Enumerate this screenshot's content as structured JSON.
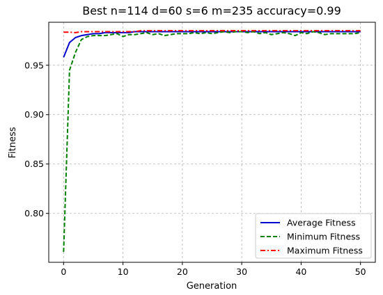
{
  "chart_data": {
    "type": "line",
    "title": "Best n=114 d=60 s=6 m=235 accuracy=0.99",
    "xlabel": "Generation",
    "ylabel": "Fitness",
    "xlim": [
      -2.5,
      52.5
    ],
    "ylim": [
      0.7505,
      0.9935
    ],
    "xticks": [
      0,
      10,
      20,
      30,
      40,
      50
    ],
    "yticks": [
      0.8,
      0.85,
      0.9,
      0.95
    ],
    "xtick_labels": [
      "0",
      "10",
      "20",
      "30",
      "40",
      "50"
    ],
    "ytick_labels": [
      "0.80",
      "0.85",
      "0.90",
      "0.95"
    ],
    "grid": true,
    "legend_position": "lower-right",
    "x": [
      0,
      1,
      2,
      3,
      4,
      5,
      6,
      7,
      8,
      9,
      10,
      11,
      12,
      13,
      14,
      15,
      16,
      17,
      18,
      19,
      20,
      21,
      22,
      23,
      24,
      25,
      26,
      27,
      28,
      29,
      30,
      31,
      32,
      33,
      34,
      35,
      36,
      37,
      38,
      39,
      40,
      41,
      42,
      43,
      44,
      45,
      46,
      47,
      48,
      49,
      50
    ],
    "series": [
      {
        "name": "Average Fitness",
        "color": "#0000cc",
        "dash": "solid",
        "values": [
          0.958,
          0.973,
          0.978,
          0.98,
          0.981,
          0.982,
          0.982,
          0.983,
          0.983,
          0.983,
          0.983,
          0.983,
          0.984,
          0.984,
          0.984,
          0.984,
          0.984,
          0.984,
          0.984,
          0.984,
          0.984,
          0.984,
          0.984,
          0.984,
          0.984,
          0.984,
          0.984,
          0.984,
          0.984,
          0.984,
          0.984,
          0.984,
          0.984,
          0.984,
          0.984,
          0.984,
          0.984,
          0.984,
          0.984,
          0.984,
          0.984,
          0.984,
          0.984,
          0.984,
          0.984,
          0.984,
          0.984,
          0.984,
          0.984,
          0.984,
          0.984
        ]
      },
      {
        "name": "Minimum Fitness",
        "color": "#008000",
        "dash": "dashed",
        "values": [
          0.761,
          0.945,
          0.963,
          0.976,
          0.979,
          0.98,
          0.98,
          0.98,
          0.981,
          0.982,
          0.979,
          0.981,
          0.981,
          0.982,
          0.983,
          0.981,
          0.982,
          0.98,
          0.981,
          0.982,
          0.982,
          0.982,
          0.983,
          0.982,
          0.983,
          0.982,
          0.983,
          0.984,
          0.983,
          0.984,
          0.984,
          0.983,
          0.984,
          0.982,
          0.983,
          0.981,
          0.982,
          0.983,
          0.982,
          0.98,
          0.983,
          0.982,
          0.984,
          0.983,
          0.981,
          0.982,
          0.982,
          0.982,
          0.982,
          0.982,
          0.983
        ]
      },
      {
        "name": "Maximum Fitness",
        "color": "#ff0000",
        "dash": "dashdot",
        "values": [
          0.9835,
          0.9835,
          0.983,
          0.984,
          0.984,
          0.984,
          0.984,
          0.984,
          0.984,
          0.984,
          0.984,
          0.984,
          0.984,
          0.985,
          0.985,
          0.985,
          0.985,
          0.985,
          0.985,
          0.985,
          0.985,
          0.985,
          0.985,
          0.985,
          0.985,
          0.985,
          0.985,
          0.985,
          0.985,
          0.985,
          0.985,
          0.985,
          0.985,
          0.985,
          0.985,
          0.985,
          0.985,
          0.985,
          0.985,
          0.985,
          0.985,
          0.985,
          0.985,
          0.985,
          0.985,
          0.985,
          0.985,
          0.985,
          0.985,
          0.985,
          0.985
        ]
      }
    ]
  }
}
